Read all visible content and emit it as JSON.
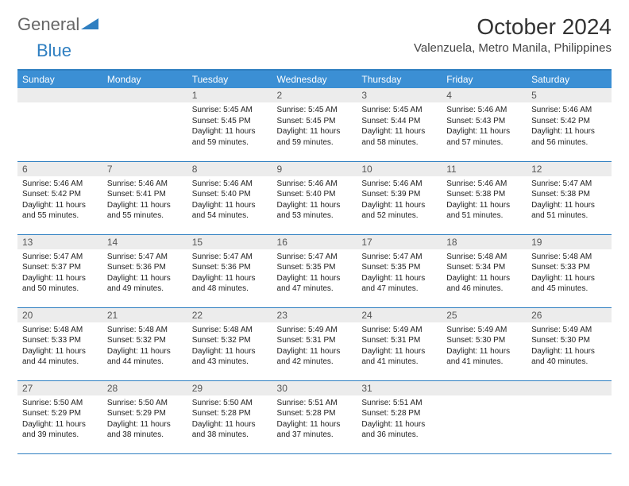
{
  "logo": {
    "text_general": "General",
    "text_blue": "Blue"
  },
  "title": "October 2024",
  "location": "Valenzuela, Metro Manila, Philippines",
  "colors": {
    "header_bg": "#3b8fd4",
    "header_text": "#ffffff",
    "border": "#2f7fc1",
    "daynum_bg": "#ececec",
    "text": "#222222",
    "logo_gray": "#666666",
    "logo_blue": "#2f7fc1"
  },
  "weekdays": [
    "Sunday",
    "Monday",
    "Tuesday",
    "Wednesday",
    "Thursday",
    "Friday",
    "Saturday"
  ],
  "first_weekday_index": 2,
  "days": [
    {
      "n": 1,
      "sunrise": "5:45 AM",
      "sunset": "5:45 PM",
      "daylight": "11 hours and 59 minutes."
    },
    {
      "n": 2,
      "sunrise": "5:45 AM",
      "sunset": "5:45 PM",
      "daylight": "11 hours and 59 minutes."
    },
    {
      "n": 3,
      "sunrise": "5:45 AM",
      "sunset": "5:44 PM",
      "daylight": "11 hours and 58 minutes."
    },
    {
      "n": 4,
      "sunrise": "5:46 AM",
      "sunset": "5:43 PM",
      "daylight": "11 hours and 57 minutes."
    },
    {
      "n": 5,
      "sunrise": "5:46 AM",
      "sunset": "5:42 PM",
      "daylight": "11 hours and 56 minutes."
    },
    {
      "n": 6,
      "sunrise": "5:46 AM",
      "sunset": "5:42 PM",
      "daylight": "11 hours and 55 minutes."
    },
    {
      "n": 7,
      "sunrise": "5:46 AM",
      "sunset": "5:41 PM",
      "daylight": "11 hours and 55 minutes."
    },
    {
      "n": 8,
      "sunrise": "5:46 AM",
      "sunset": "5:40 PM",
      "daylight": "11 hours and 54 minutes."
    },
    {
      "n": 9,
      "sunrise": "5:46 AM",
      "sunset": "5:40 PM",
      "daylight": "11 hours and 53 minutes."
    },
    {
      "n": 10,
      "sunrise": "5:46 AM",
      "sunset": "5:39 PM",
      "daylight": "11 hours and 52 minutes."
    },
    {
      "n": 11,
      "sunrise": "5:46 AM",
      "sunset": "5:38 PM",
      "daylight": "11 hours and 51 minutes."
    },
    {
      "n": 12,
      "sunrise": "5:47 AM",
      "sunset": "5:38 PM",
      "daylight": "11 hours and 51 minutes."
    },
    {
      "n": 13,
      "sunrise": "5:47 AM",
      "sunset": "5:37 PM",
      "daylight": "11 hours and 50 minutes."
    },
    {
      "n": 14,
      "sunrise": "5:47 AM",
      "sunset": "5:36 PM",
      "daylight": "11 hours and 49 minutes."
    },
    {
      "n": 15,
      "sunrise": "5:47 AM",
      "sunset": "5:36 PM",
      "daylight": "11 hours and 48 minutes."
    },
    {
      "n": 16,
      "sunrise": "5:47 AM",
      "sunset": "5:35 PM",
      "daylight": "11 hours and 47 minutes."
    },
    {
      "n": 17,
      "sunrise": "5:47 AM",
      "sunset": "5:35 PM",
      "daylight": "11 hours and 47 minutes."
    },
    {
      "n": 18,
      "sunrise": "5:48 AM",
      "sunset": "5:34 PM",
      "daylight": "11 hours and 46 minutes."
    },
    {
      "n": 19,
      "sunrise": "5:48 AM",
      "sunset": "5:33 PM",
      "daylight": "11 hours and 45 minutes."
    },
    {
      "n": 20,
      "sunrise": "5:48 AM",
      "sunset": "5:33 PM",
      "daylight": "11 hours and 44 minutes."
    },
    {
      "n": 21,
      "sunrise": "5:48 AM",
      "sunset": "5:32 PM",
      "daylight": "11 hours and 44 minutes."
    },
    {
      "n": 22,
      "sunrise": "5:48 AM",
      "sunset": "5:32 PM",
      "daylight": "11 hours and 43 minutes."
    },
    {
      "n": 23,
      "sunrise": "5:49 AM",
      "sunset": "5:31 PM",
      "daylight": "11 hours and 42 minutes."
    },
    {
      "n": 24,
      "sunrise": "5:49 AM",
      "sunset": "5:31 PM",
      "daylight": "11 hours and 41 minutes."
    },
    {
      "n": 25,
      "sunrise": "5:49 AM",
      "sunset": "5:30 PM",
      "daylight": "11 hours and 41 minutes."
    },
    {
      "n": 26,
      "sunrise": "5:49 AM",
      "sunset": "5:30 PM",
      "daylight": "11 hours and 40 minutes."
    },
    {
      "n": 27,
      "sunrise": "5:50 AM",
      "sunset": "5:29 PM",
      "daylight": "11 hours and 39 minutes."
    },
    {
      "n": 28,
      "sunrise": "5:50 AM",
      "sunset": "5:29 PM",
      "daylight": "11 hours and 38 minutes."
    },
    {
      "n": 29,
      "sunrise": "5:50 AM",
      "sunset": "5:28 PM",
      "daylight": "11 hours and 38 minutes."
    },
    {
      "n": 30,
      "sunrise": "5:51 AM",
      "sunset": "5:28 PM",
      "daylight": "11 hours and 37 minutes."
    },
    {
      "n": 31,
      "sunrise": "5:51 AM",
      "sunset": "5:28 PM",
      "daylight": "11 hours and 36 minutes."
    }
  ],
  "labels": {
    "sunrise": "Sunrise:",
    "sunset": "Sunset:",
    "daylight": "Daylight:"
  }
}
